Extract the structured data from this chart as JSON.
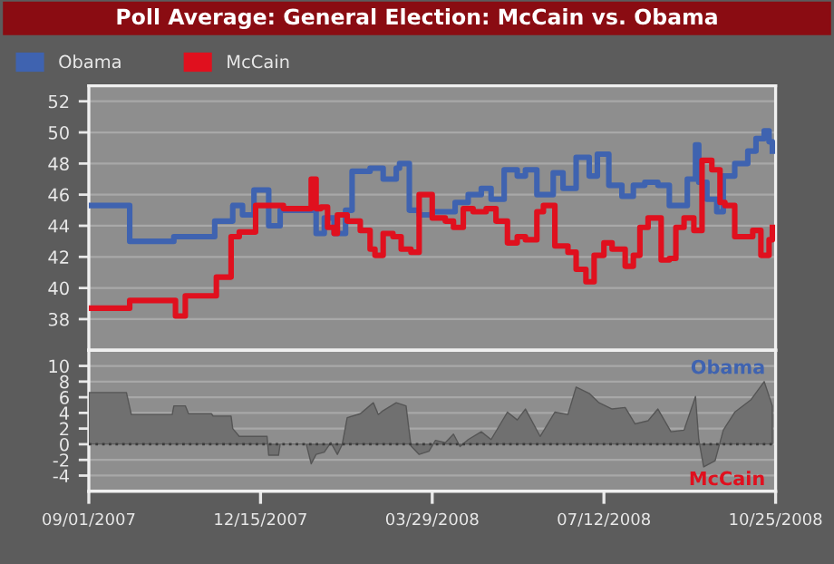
{
  "chart_data": [
    {
      "type": "line",
      "title": "Poll Average: General Election: McCain vs. Obama",
      "legend": "top left",
      "grid": "y",
      "tick_labels": "y",
      "line_style": "solid",
      "xlim": [
        "2007-09-01",
        "2008-10-25"
      ],
      "ylim": [
        36,
        53
      ],
      "yticks": [
        38,
        40,
        42,
        44,
        46,
        48,
        50,
        52
      ],
      "series": [
        {
          "name": "Obama",
          "color": "#3f63b0",
          "type": "step",
          "x": [
            "2007-09-01",
            "2007-09-25",
            "2007-09-26",
            "2007-10-22",
            "2007-10-23",
            "2007-11-16",
            "2007-11-17",
            "2007-11-27",
            "2007-11-28",
            "2007-12-02",
            "2007-12-04",
            "2007-12-10",
            "2007-12-11",
            "2007-12-19",
            "2007-12-20",
            "2007-12-26",
            "2007-12-27",
            "2008-01-14",
            "2008-01-18",
            "2008-01-23",
            "2008-01-29",
            "2008-02-03",
            "2008-02-05",
            "2008-02-09",
            "2008-02-20",
            "2008-02-28",
            "2008-03-07",
            "2008-03-09",
            "2008-03-15",
            "2008-03-21",
            "2008-03-29",
            "2008-04-06",
            "2008-04-12",
            "2008-04-20",
            "2008-04-28",
            "2008-05-04",
            "2008-05-12",
            "2008-05-20",
            "2008-05-25",
            "2008-06-01",
            "2008-06-11",
            "2008-06-17",
            "2008-06-25",
            "2008-07-03",
            "2008-07-08",
            "2008-07-15",
            "2008-07-23",
            "2008-07-30",
            "2008-08-06",
            "2008-08-14",
            "2008-08-21",
            "2008-08-27",
            "2008-09-01",
            "2008-09-06",
            "2008-09-08",
            "2008-09-13",
            "2008-09-19",
            "2008-09-23",
            "2008-09-30",
            "2008-10-08",
            "2008-10-13",
            "2008-10-18",
            "2008-10-21",
            "2008-10-23"
          ],
          "values": [
            45.3,
            45.3,
            43,
            43,
            43.3,
            43.3,
            44.3,
            44.3,
            45.3,
            45.3,
            44.7,
            44.7,
            46.3,
            46.3,
            44,
            44,
            45,
            45,
            43.5,
            44.5,
            43.5,
            43.5,
            45,
            47.5,
            47.7,
            47,
            47.7,
            48,
            45,
            44.7,
            44.9,
            44.9,
            45.5,
            46,
            46.4,
            45.7,
            47.6,
            47.2,
            47.6,
            46,
            47.4,
            46.4,
            48.4,
            47.2,
            48.6,
            46.6,
            45.9,
            46.6,
            46.8,
            46.6,
            45.3,
            45.3,
            47,
            49.2,
            46.8,
            45.7,
            44.9,
            47.2,
            48,
            48.8,
            49.6,
            50.1,
            49.4,
            48.8
          ]
        },
        {
          "name": "McCain",
          "color": "#e0101e",
          "type": "step",
          "x": [
            "2007-09-01",
            "2007-09-22",
            "2007-09-26",
            "2007-10-22",
            "2007-10-24",
            "2007-10-29",
            "2007-10-30",
            "2007-11-16",
            "2007-11-18",
            "2007-11-26",
            "2007-11-27",
            "2007-12-02",
            "2007-12-10",
            "2007-12-12",
            "2007-12-27",
            "2007-12-29",
            "2008-01-14",
            "2008-01-15",
            "2008-01-18",
            "2008-01-21",
            "2008-01-25",
            "2008-01-29",
            "2008-01-31",
            "2008-02-06",
            "2008-02-14",
            "2008-02-20",
            "2008-02-23",
            "2008-02-28",
            "2008-03-05",
            "2008-03-10",
            "2008-03-16",
            "2008-03-21",
            "2008-03-26",
            "2008-03-29",
            "2008-04-06",
            "2008-04-11",
            "2008-04-17",
            "2008-04-23",
            "2008-05-01",
            "2008-05-07",
            "2008-05-14",
            "2008-05-20",
            "2008-05-25",
            "2008-06-01",
            "2008-06-05",
            "2008-06-12",
            "2008-06-20",
            "2008-06-25",
            "2008-07-01",
            "2008-07-06",
            "2008-07-12",
            "2008-07-17",
            "2008-07-25",
            "2008-07-30",
            "2008-08-03",
            "2008-08-08",
            "2008-08-16",
            "2008-08-21",
            "2008-08-25",
            "2008-08-30",
            "2008-09-05",
            "2008-09-10",
            "2008-09-16",
            "2008-09-21",
            "2008-09-24",
            "2008-09-30",
            "2008-10-05",
            "2008-10-11",
            "2008-10-16",
            "2008-10-21",
            "2008-10-23"
          ],
          "values": [
            38.7,
            38.7,
            39.2,
            39.2,
            38.2,
            38.2,
            39.5,
            39.5,
            40.7,
            40.7,
            43.3,
            43.6,
            43.6,
            45.3,
            45.3,
            45.1,
            45.1,
            47,
            45.1,
            45.2,
            43.9,
            43.5,
            44.7,
            44.3,
            43.7,
            42.5,
            42.1,
            43.5,
            43.3,
            42.5,
            42.3,
            46,
            46,
            44.5,
            44.3,
            43.9,
            45.1,
            44.9,
            45.1,
            44.3,
            42.9,
            43.3,
            43.1,
            44.9,
            45.3,
            42.7,
            42.3,
            41.2,
            40.4,
            42.1,
            42.9,
            42.5,
            41.4,
            42.1,
            43.9,
            44.5,
            41.8,
            41.9,
            43.9,
            44.5,
            43.7,
            48.2,
            47.6,
            45.5,
            45.3,
            43.3,
            43.3,
            43.7,
            42.1,
            43.1,
            43.9
          ]
        }
      ]
    },
    {
      "type": "area",
      "grid": "y",
      "annotations": [
        "Obama",
        "McCain"
      ],
      "xlim": [
        "2007-09-01",
        "2008-10-25"
      ],
      "ylim": [
        -6,
        12
      ],
      "yticks": [
        -4,
        -2,
        0,
        2,
        4,
        6,
        8,
        10
      ],
      "xticks": [
        {
          "value": "2007-09-01",
          "label": "09/01/2007"
        },
        {
          "value": "2007-12-15",
          "label": "12/15/2007"
        },
        {
          "value": "2008-03-29",
          "label": "03/29/2008"
        },
        {
          "value": "2008-07-12",
          "label": "07/12/2008"
        },
        {
          "value": "2008-10-25",
          "label": "10/25/2008"
        }
      ],
      "ref_lines": [
        {
          "axis": "y",
          "value": 0,
          "color": "#3a3a3a",
          "line_style": "dotted"
        }
      ],
      "series": [
        {
          "color": "#707070",
          "x": [
            "2007-09-01",
            "2007-09-24",
            "2007-09-27",
            "2007-10-22",
            "2007-10-23",
            "2007-10-30",
            "2007-11-01",
            "2007-11-15",
            "2007-11-16",
            "2007-11-27",
            "2007-11-28",
            "2007-12-02",
            "2007-12-19",
            "2007-12-20",
            "2007-12-26",
            "2007-12-27",
            "2008-01-12",
            "2008-01-15",
            "2008-01-18",
            "2008-01-23",
            "2008-01-27",
            "2008-01-31",
            "2008-02-03",
            "2008-02-06",
            "2008-02-14",
            "2008-02-22",
            "2008-02-25",
            "2008-02-28",
            "2008-03-07",
            "2008-03-13",
            "2008-03-16",
            "2008-03-21",
            "2008-03-27",
            "2008-03-31",
            "2008-04-06",
            "2008-04-11",
            "2008-04-15",
            "2008-04-20",
            "2008-04-28",
            "2008-05-04",
            "2008-05-14",
            "2008-05-20",
            "2008-05-25",
            "2008-06-03",
            "2008-06-12",
            "2008-06-20",
            "2008-06-25",
            "2008-07-03",
            "2008-07-09",
            "2008-07-17",
            "2008-07-25",
            "2008-07-31",
            "2008-08-08",
            "2008-08-14",
            "2008-08-22",
            "2008-08-30",
            "2008-09-06",
            "2008-09-08",
            "2008-09-11",
            "2008-09-18",
            "2008-09-23",
            "2008-09-30",
            "2008-10-10",
            "2008-10-18",
            "2008-10-23"
          ],
          "values": [
            6.6,
            6.6,
            3.8,
            3.8,
            4.9,
            4.9,
            3.9,
            3.9,
            3.6,
            3.6,
            2,
            1,
            1,
            -1.4,
            -1.4,
            0,
            0,
            -2.5,
            -1.3,
            -1,
            0.2,
            -1.3,
            0,
            3.4,
            3.9,
            5.3,
            3.8,
            4.3,
            5.3,
            4.9,
            -0.2,
            -1.3,
            -0.9,
            0.5,
            0.2,
            1.3,
            -0.3,
            0.6,
            1.6,
            0.6,
            4.1,
            3.1,
            4.5,
            1,
            4.1,
            3.8,
            7.3,
            6.5,
            5.3,
            4.5,
            4.7,
            2.6,
            3,
            4.5,
            1.6,
            1.8,
            6.1,
            0.6,
            -2.9,
            -2.1,
            1.8,
            4.1,
            5.7,
            8,
            4.9
          ]
        }
      ]
    }
  ]
}
